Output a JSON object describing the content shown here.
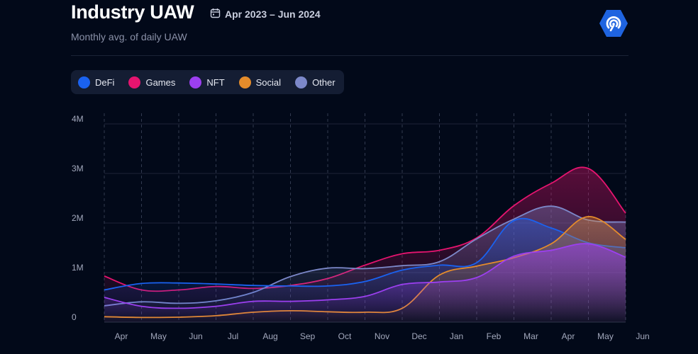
{
  "header": {
    "title": "Industry UAW",
    "date_range": "Apr 2023 – Jun 2024",
    "subtitle": "Monthly avg. of daily UAW",
    "calendar_icon": "calendar-icon",
    "brand_icon": "brand-logo-icon",
    "brand_color": "#1f64e0"
  },
  "legend": [
    {
      "name": "DeFi",
      "color": "#1a62f0"
    },
    {
      "name": "Games",
      "color": "#e5146f"
    },
    {
      "name": "NFT",
      "color": "#9c3ff0"
    },
    {
      "name": "Social",
      "color": "#e58c2b"
    },
    {
      "name": "Other",
      "color": "#7c88c9"
    }
  ],
  "chart_data": {
    "type": "area",
    "categories": [
      "Apr",
      "May",
      "Jun",
      "Jul",
      "Aug",
      "Sep",
      "Oct",
      "Nov",
      "Dec",
      "Jan",
      "Feb",
      "Mar",
      "Apr",
      "May",
      "Jun"
    ],
    "y_ticks": [
      "0",
      "1M",
      "2M",
      "3M",
      "4M"
    ],
    "ylim": [
      0,
      4000000
    ],
    "grid": true,
    "legend_position": "top-left",
    "series": [
      {
        "name": "DeFi",
        "color": "#1a62f0",
        "values": [
          650000,
          780000,
          790000,
          770000,
          740000,
          730000,
          730000,
          820000,
          1050000,
          1150000,
          1200000,
          2050000,
          1900000,
          1600000,
          1500000
        ]
      },
      {
        "name": "Games",
        "color": "#e5146f",
        "values": [
          930000,
          650000,
          650000,
          720000,
          680000,
          740000,
          880000,
          1150000,
          1380000,
          1450000,
          1700000,
          2350000,
          2800000,
          3100000,
          2200000
        ]
      },
      {
        "name": "NFT",
        "color": "#9c3ff0",
        "values": [
          500000,
          320000,
          280000,
          320000,
          420000,
          420000,
          450000,
          520000,
          760000,
          810000,
          900000,
          1330000,
          1450000,
          1580000,
          1310000
        ]
      },
      {
        "name": "Social",
        "color": "#e58c2b",
        "values": [
          110000,
          95000,
          100000,
          130000,
          200000,
          230000,
          210000,
          200000,
          280000,
          950000,
          1130000,
          1300000,
          1580000,
          2130000,
          1670000
        ]
      },
      {
        "name": "Other",
        "color": "#7c88c9",
        "values": [
          330000,
          410000,
          380000,
          430000,
          600000,
          920000,
          1090000,
          1080000,
          1140000,
          1220000,
          1680000,
          2080000,
          2340000,
          2060000,
          2020000
        ]
      }
    ]
  }
}
